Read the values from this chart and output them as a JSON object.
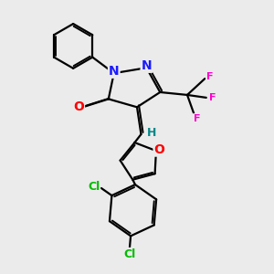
{
  "bg_color": "#ebebeb",
  "atom_colors": {
    "C": "#000000",
    "N": "#1a1aff",
    "O": "#ff0000",
    "F": "#ff00cc",
    "Cl": "#00bb00",
    "H": "#008888"
  },
  "bond_color": "#000000",
  "bond_lw": 1.6,
  "font_size": 9,
  "fig_size": [
    3.0,
    3.0
  ],
  "dpi": 100
}
